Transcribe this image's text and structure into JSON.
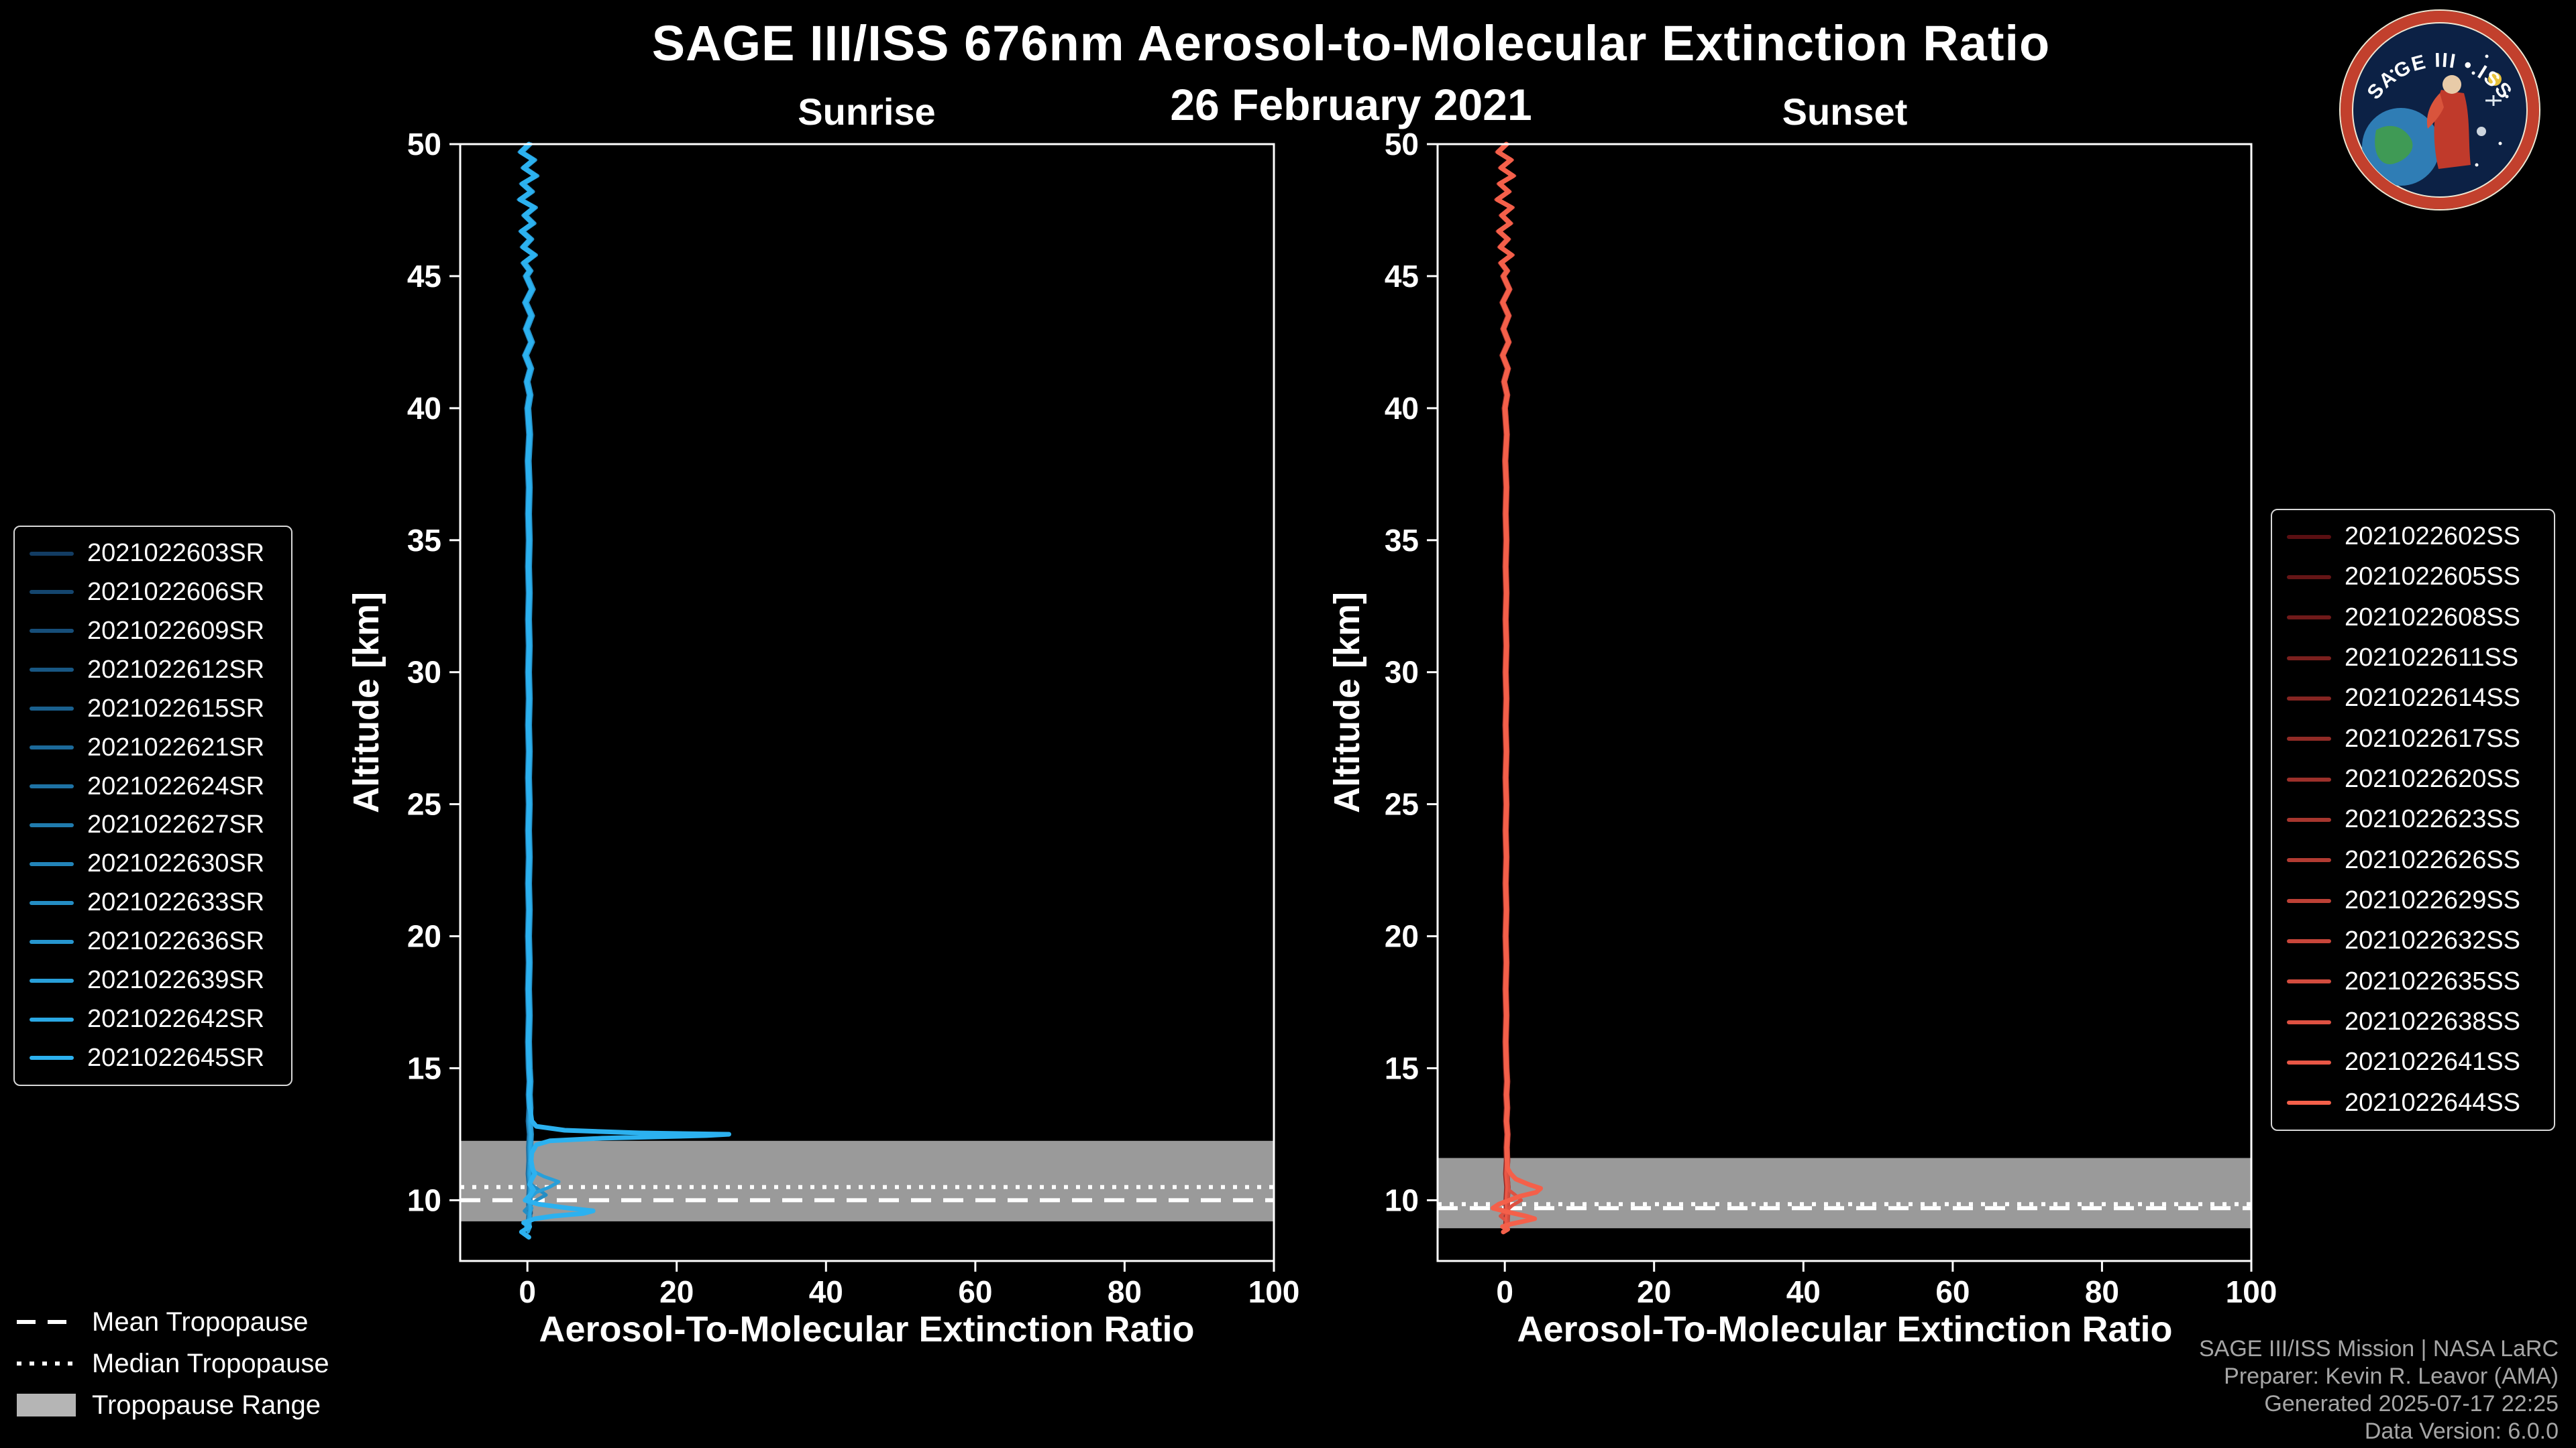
{
  "header": {
    "title": "SAGE III/ISS 676nm Aerosol-to-Molecular Extinction Ratio",
    "date": "26 February 2021"
  },
  "logo": {
    "title": "SAGE III • ISS"
  },
  "trop_legend": {
    "mean": "Mean Tropopause",
    "median": "Median Tropopause",
    "range": "Tropopause Range"
  },
  "footer": {
    "lines": [
      "SAGE III/ISS Mission | NASA LaRC",
      "Preparer: Kevin R. Leavor (AMA)",
      "Generated 2025-07-17 22:25",
      "Data Version: 6.0.0"
    ]
  },
  "chart_data": [
    {
      "type": "line",
      "panel_title": "Sunrise",
      "xlabel": "Aerosol-To-Molecular Extinction Ratio",
      "ylabel": "Altitude [km]",
      "xlim": [
        -9,
        100
      ],
      "ylim": [
        7.7,
        50
      ],
      "xticks": [
        0,
        20,
        40,
        60,
        80,
        100
      ],
      "yticks": [
        10,
        15,
        20,
        25,
        30,
        35,
        40,
        45,
        50
      ],
      "tropopause": {
        "range": [
          9.2,
          12.25
        ],
        "mean": 10.0,
        "median": 10.5,
        "band_color": "#b5b5b5"
      },
      "base_profile": [
        [
          50,
          0.2
        ],
        [
          49.7,
          -0.9
        ],
        [
          49.4,
          0.8
        ],
        [
          49.1,
          -0.5
        ],
        [
          48.8,
          1.1
        ],
        [
          48.5,
          -0.7
        ],
        [
          48.2,
          0.5
        ],
        [
          47.9,
          -1.0
        ],
        [
          47.6,
          0.9
        ],
        [
          47.3,
          -0.4
        ],
        [
          47,
          0.7
        ],
        [
          46.7,
          -0.8
        ],
        [
          46.4,
          0.4
        ],
        [
          46.1,
          -0.6
        ],
        [
          45.8,
          0.9
        ],
        [
          45.5,
          -0.5
        ],
        [
          45.2,
          0.3
        ],
        [
          45,
          -0.2
        ],
        [
          44.5,
          0.6
        ],
        [
          44,
          -0.3
        ],
        [
          43.5,
          0.5
        ],
        [
          43,
          -0.2
        ],
        [
          42.5,
          0.5
        ],
        [
          42,
          -0.3
        ],
        [
          41.5,
          0.4
        ],
        [
          41,
          -0.1
        ],
        [
          40.5,
          0.3
        ],
        [
          40,
          0
        ],
        [
          39,
          0.25
        ],
        [
          38,
          0.05
        ],
        [
          37,
          0.2
        ],
        [
          36,
          0.1
        ],
        [
          35,
          0.2
        ],
        [
          34,
          0.1
        ],
        [
          33,
          0.2
        ],
        [
          32,
          0.1
        ],
        [
          31,
          0.2
        ],
        [
          30,
          0.1
        ],
        [
          29,
          0.2
        ],
        [
          28,
          0.1
        ],
        [
          27,
          0.2
        ],
        [
          26,
          0.1
        ],
        [
          25,
          0.2
        ],
        [
          24,
          0.1
        ],
        [
          23,
          0.2
        ],
        [
          22,
          0.1
        ],
        [
          21,
          0.2
        ],
        [
          20,
          0.1
        ],
        [
          19,
          0.2
        ],
        [
          18,
          0.1
        ],
        [
          17,
          0.2
        ],
        [
          16,
          0.1
        ],
        [
          15,
          0.2
        ],
        [
          14.5,
          0.3
        ],
        [
          14,
          0.2
        ],
        [
          13.5,
          0.3
        ],
        [
          13,
          0.2
        ],
        [
          12.5,
          0.35
        ],
        [
          12,
          0.25
        ],
        [
          11.5,
          0.3
        ],
        [
          11,
          0.2
        ],
        [
          10.5,
          0.35
        ],
        [
          10,
          0.25
        ],
        [
          9.5,
          0.3
        ],
        [
          9,
          0.2
        ],
        [
          8.6,
          0.1
        ]
      ],
      "series": [
        {
          "name": "2021022603SR",
          "color": "#123c63",
          "dx": 0.15,
          "end": 9.0
        },
        {
          "name": "2021022606SR",
          "color": "#14456e",
          "dx": -0.2,
          "end": 8.8
        },
        {
          "name": "2021022609SR",
          "color": "#164e79",
          "dx": 0.25,
          "end": 9.2
        },
        {
          "name": "2021022612SR",
          "color": "#185783",
          "dx": -0.1,
          "end": 8.7
        },
        {
          "name": "2021022615SR",
          "color": "#1a608e",
          "dx": 0.2,
          "end": 9.0
        },
        {
          "name": "2021022621SR",
          "color": "#1c6999",
          "dx": -0.25,
          "end": 8.8
        },
        {
          "name": "2021022624SR",
          "color": "#1e72a4",
          "dx": 0.1,
          "end": 9.1
        },
        {
          "name": "2021022627SR",
          "color": "#207bae",
          "dx": -0.15,
          "end": 8.7
        },
        {
          "name": "2021022630SR",
          "color": "#2284b9",
          "dx": 0.05,
          "end": 9.0
        },
        {
          "name": "2021022633SR",
          "color": "#248dc4",
          "dx": 0.3,
          "width": 5,
          "tail": [
            [
              10.6,
              0.5
            ],
            [
              10.4,
              1.5
            ],
            [
              10.2,
              2.5
            ],
            [
              10.0,
              1.2
            ],
            [
              9.8,
              0.3
            ],
            [
              9.6,
              -0.4
            ],
            [
              9.4,
              0.4
            ],
            [
              9.2,
              0.2
            ],
            [
              9.0,
              -0.2
            ]
          ]
        },
        {
          "name": "2021022636SR",
          "color": "#2696cf",
          "dx": -0.05,
          "end": 8.8
        },
        {
          "name": "2021022639SR",
          "color": "#289fd9",
          "dx": 0.2,
          "width": 5,
          "tail": [
            [
              11.4,
              0.3
            ],
            [
              11.1,
              0.8
            ],
            [
              10.9,
              2.2
            ],
            [
              10.7,
              4.2
            ],
            [
              10.5,
              3.0
            ],
            [
              10.3,
              1.2
            ],
            [
              10.1,
              0.4
            ],
            [
              9.9,
              0.2
            ],
            [
              9.7,
              0.6
            ],
            [
              9.5,
              0.3
            ],
            [
              9.2,
              0.1
            ],
            [
              9.0,
              0.4
            ],
            [
              8.8,
              0.1
            ]
          ]
        },
        {
          "name": "2021022642SR",
          "color": "#2aa8e4",
          "dx": 0.1,
          "end": 8.9
        },
        {
          "name": "2021022645SR",
          "color": "#2cb1ef",
          "dx": 0,
          "width": 7,
          "tail": [
            [
              13.4,
              0.4
            ],
            [
              13.0,
              0.6
            ],
            [
              12.8,
              1.2
            ],
            [
              12.65,
              5
            ],
            [
              12.55,
              15
            ],
            [
              12.5,
              27
            ],
            [
              12.45,
              24
            ],
            [
              12.35,
              10
            ],
            [
              12.25,
              3
            ],
            [
              12.1,
              1.2
            ],
            [
              11.8,
              0.6
            ],
            [
              11.5,
              0.5
            ],
            [
              11.2,
              0.7
            ],
            [
              11.0,
              1.0
            ],
            [
              10.8,
              0.6
            ],
            [
              10.6,
              0.3
            ],
            [
              10.4,
              0.8
            ],
            [
              10.2,
              0.4
            ],
            [
              10.0,
              -0.3
            ],
            [
              9.85,
              1.5
            ],
            [
              9.7,
              5.5
            ],
            [
              9.6,
              8.8
            ],
            [
              9.5,
              7.5
            ],
            [
              9.4,
              3.5
            ],
            [
              9.3,
              1.0
            ],
            [
              9.15,
              -0.5
            ],
            [
              9.0,
              0.3
            ],
            [
              8.8,
              -0.8
            ],
            [
              8.6,
              0.2
            ]
          ]
        }
      ]
    },
    {
      "type": "line",
      "panel_title": "Sunset",
      "xlabel": "Aerosol-To-Molecular Extinction Ratio",
      "ylabel": "Altitude [km]",
      "xlim": [
        -9,
        100
      ],
      "ylim": [
        7.7,
        50
      ],
      "xticks": [
        0,
        20,
        40,
        60,
        80,
        100
      ],
      "yticks": [
        10,
        15,
        20,
        25,
        30,
        35,
        40,
        45,
        50
      ],
      "tropopause": {
        "range": [
          8.94,
          11.6
        ],
        "mean": 9.7,
        "median": 9.85,
        "band_color": "#b5b5b5"
      },
      "base_profile": [
        [
          50,
          0.2
        ],
        [
          49.7,
          -0.9
        ],
        [
          49.4,
          0.8
        ],
        [
          49.1,
          -0.5
        ],
        [
          48.8,
          1.1
        ],
        [
          48.5,
          -0.7
        ],
        [
          48.2,
          0.5
        ],
        [
          47.9,
          -1.0
        ],
        [
          47.6,
          0.9
        ],
        [
          47.3,
          -0.4
        ],
        [
          47,
          0.7
        ],
        [
          46.7,
          -0.8
        ],
        [
          46.4,
          0.4
        ],
        [
          46.1,
          -0.6
        ],
        [
          45.8,
          0.9
        ],
        [
          45.5,
          -0.5
        ],
        [
          45.2,
          0.3
        ],
        [
          45,
          -0.2
        ],
        [
          44.5,
          0.6
        ],
        [
          44,
          -0.3
        ],
        [
          43.5,
          0.5
        ],
        [
          43,
          -0.2
        ],
        [
          42.5,
          0.5
        ],
        [
          42,
          -0.3
        ],
        [
          41.5,
          0.4
        ],
        [
          41,
          -0.1
        ],
        [
          40.5,
          0.3
        ],
        [
          40,
          0
        ],
        [
          39,
          0.25
        ],
        [
          38,
          0.05
        ],
        [
          37,
          0.2
        ],
        [
          36,
          0.1
        ],
        [
          35,
          0.2
        ],
        [
          34,
          0.1
        ],
        [
          33,
          0.2
        ],
        [
          32,
          0.1
        ],
        [
          31,
          0.2
        ],
        [
          30,
          0.1
        ],
        [
          29,
          0.2
        ],
        [
          28,
          0.1
        ],
        [
          27,
          0.2
        ],
        [
          26,
          0.1
        ],
        [
          25,
          0.2
        ],
        [
          24,
          0.1
        ],
        [
          23,
          0.2
        ],
        [
          22,
          0.1
        ],
        [
          21,
          0.2
        ],
        [
          20,
          0.1
        ],
        [
          19,
          0.2
        ],
        [
          18,
          0.1
        ],
        [
          17,
          0.2
        ],
        [
          16,
          0.1
        ],
        [
          15,
          0.2
        ],
        [
          14.5,
          0.3
        ],
        [
          14,
          0.2
        ],
        [
          13.5,
          0.3
        ],
        [
          13,
          0.2
        ],
        [
          12.5,
          0.35
        ],
        [
          12,
          0.25
        ],
        [
          11.5,
          0.3
        ],
        [
          11,
          0.2
        ],
        [
          10.5,
          0.35
        ],
        [
          10,
          0.25
        ],
        [
          9.5,
          0.3
        ],
        [
          9,
          0.2
        ],
        [
          8.6,
          0.1
        ]
      ],
      "series": [
        {
          "name": "2021022602SS",
          "color": "#5a0f12",
          "dx": 0.15,
          "end": 9.0
        },
        {
          "name": "2021022605SS",
          "color": "#651516",
          "dx": -0.2,
          "end": 8.8
        },
        {
          "name": "2021022608SS",
          "color": "#701a1a",
          "dx": 0.25,
          "end": 9.1
        },
        {
          "name": "2021022611SS",
          "color": "#7b201e",
          "dx": -0.1,
          "end": 8.7
        },
        {
          "name": "2021022614SS",
          "color": "#862522",
          "dx": 0.2,
          "end": 9.0
        },
        {
          "name": "2021022617SS",
          "color": "#912b26",
          "dx": -0.25,
          "end": 8.8
        },
        {
          "name": "2021022620SS",
          "color": "#9c302a",
          "dx": 0.1,
          "end": 9.2
        },
        {
          "name": "2021022623SS",
          "color": "#a7362e",
          "dx": -0.15,
          "end": 8.7
        },
        {
          "name": "2021022626SS",
          "color": "#b23b32",
          "dx": 0.05,
          "end": 9.0
        },
        {
          "name": "2021022629SS",
          "color": "#bd4136",
          "dx": 0.25,
          "end": 8.9
        },
        {
          "name": "2021022632SS",
          "color": "#c8463a",
          "dx": -0.05,
          "end": 8.8
        },
        {
          "name": "2021022635SS",
          "color": "#d34c3e",
          "dx": 0.2,
          "end": 9.0
        },
        {
          "name": "2021022638SS",
          "color": "#de5142",
          "dx": 0.1,
          "width": 5,
          "tail": [
            [
              10.4,
              0.5
            ],
            [
              10.2,
              1.4
            ],
            [
              10.0,
              2.2
            ],
            [
              9.8,
              1.0
            ],
            [
              9.6,
              0.2
            ],
            [
              9.4,
              -0.6
            ],
            [
              9.2,
              0.3
            ],
            [
              9.0,
              0.1
            ]
          ]
        },
        {
          "name": "2021022641SS",
          "color": "#e95746",
          "dx": -0.1,
          "end": 8.9
        },
        {
          "name": "2021022644SS",
          "color": "#f4604a",
          "dx": 0,
          "width": 7,
          "tail": [
            [
              11.2,
              0.4
            ],
            [
              11.0,
              0.8
            ],
            [
              10.8,
              1.5
            ],
            [
              10.6,
              3.2
            ],
            [
              10.45,
              4.8
            ],
            [
              10.3,
              4.2
            ],
            [
              10.15,
              2.0
            ],
            [
              10.0,
              0.6
            ],
            [
              9.85,
              -0.8
            ],
            [
              9.7,
              -1.6
            ],
            [
              9.55,
              0.5
            ],
            [
              9.4,
              2.8
            ],
            [
              9.3,
              4.0
            ],
            [
              9.2,
              2.5
            ],
            [
              9.1,
              0.8
            ],
            [
              9.0,
              -0.3
            ],
            [
              8.9,
              0.4
            ],
            [
              8.8,
              -0.2
            ]
          ]
        }
      ]
    }
  ]
}
